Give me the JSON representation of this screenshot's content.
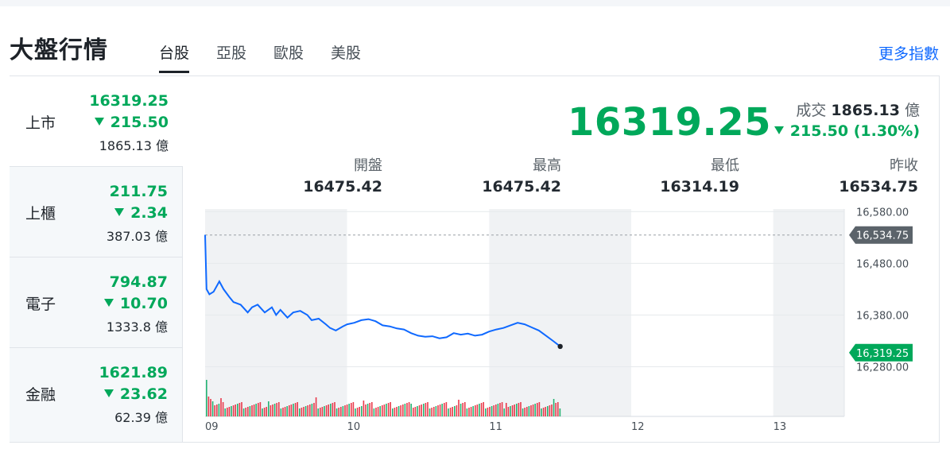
{
  "header": {
    "title": "大盤行情",
    "tabs": [
      {
        "label": "台股",
        "active": true
      },
      {
        "label": "亞股",
        "active": false
      },
      {
        "label": "歐股",
        "active": false
      },
      {
        "label": "美股",
        "active": false
      }
    ],
    "more_link": "更多指數"
  },
  "indices": [
    {
      "name": "上市",
      "price": "16319.25",
      "change": "215.50",
      "volume": "1865.13 億",
      "active": true
    },
    {
      "name": "上櫃",
      "price": "211.75",
      "change": "2.34",
      "volume": "387.03 億",
      "active": false
    },
    {
      "name": "電子",
      "price": "794.87",
      "change": "10.70",
      "volume": "1333.8 億",
      "active": false
    },
    {
      "name": "金融",
      "price": "1621.89",
      "change": "23.62",
      "volume": "62.39 億",
      "active": false
    }
  ],
  "quote": {
    "price": "16319.25",
    "turnover_label": "成交",
    "turnover_value": "1865.13",
    "turnover_unit": "億",
    "change": "215.50 (1.30%)",
    "stats": [
      {
        "label": "開盤",
        "value": "16475.42"
      },
      {
        "label": "最高",
        "value": "16475.42"
      },
      {
        "label": "最低",
        "value": "16314.19"
      },
      {
        "label": "昨收",
        "value": "16534.75"
      }
    ]
  },
  "colors": {
    "down": "#00a85a",
    "up": "#e6192d",
    "line": "#0f69ff",
    "link": "#0f69ff"
  },
  "chart_data": {
    "type": "line",
    "x_ticks": [
      "09",
      "10",
      "11",
      "12",
      "13"
    ],
    "y_ticks": [
      "16,580.00",
      "16,480.00",
      "16,380.00",
      "16,280.00"
    ],
    "ylim": [
      16270,
      16585
    ],
    "xlim_hours": [
      9,
      13.5
    ],
    "prev_close": 16534.75,
    "prev_close_label": "16,534.75",
    "last_label": "16,319.25",
    "series": [
      {
        "x": [
          9.0,
          9.01,
          9.03,
          9.06,
          9.1,
          9.13,
          9.17,
          9.2,
          9.25,
          9.3,
          9.33,
          9.37,
          9.42,
          9.47,
          9.5,
          9.53,
          9.58,
          9.62,
          9.67,
          9.72,
          9.75,
          9.8,
          9.85,
          9.88,
          9.92,
          9.97,
          10.0,
          10.05,
          10.1,
          10.15,
          10.2,
          10.25,
          10.3,
          10.35,
          10.4,
          10.45,
          10.5,
          10.55,
          10.6,
          10.65,
          10.7,
          10.75,
          10.8,
          10.85,
          10.9,
          10.95,
          11.0,
          11.05,
          11.1,
          11.15,
          11.2,
          11.25,
          11.3,
          11.35,
          11.4,
          11.45,
          11.5
        ],
        "y": [
          16535,
          16430,
          16420,
          16425,
          16445,
          16430,
          16415,
          16405,
          16400,
          16385,
          16395,
          16400,
          16385,
          16395,
          16380,
          16390,
          16375,
          16385,
          16388,
          16380,
          16370,
          16373,
          16362,
          16355,
          16350,
          16358,
          16362,
          16365,
          16370,
          16372,
          16368,
          16360,
          16358,
          16354,
          16352,
          16345,
          16340,
          16338,
          16339,
          16335,
          16337,
          16345,
          16342,
          16344,
          16340,
          16342,
          16348,
          16352,
          16355,
          16360,
          16365,
          16362,
          16356,
          16350,
          16340,
          16330,
          16319.25
        ]
      }
    ]
  }
}
